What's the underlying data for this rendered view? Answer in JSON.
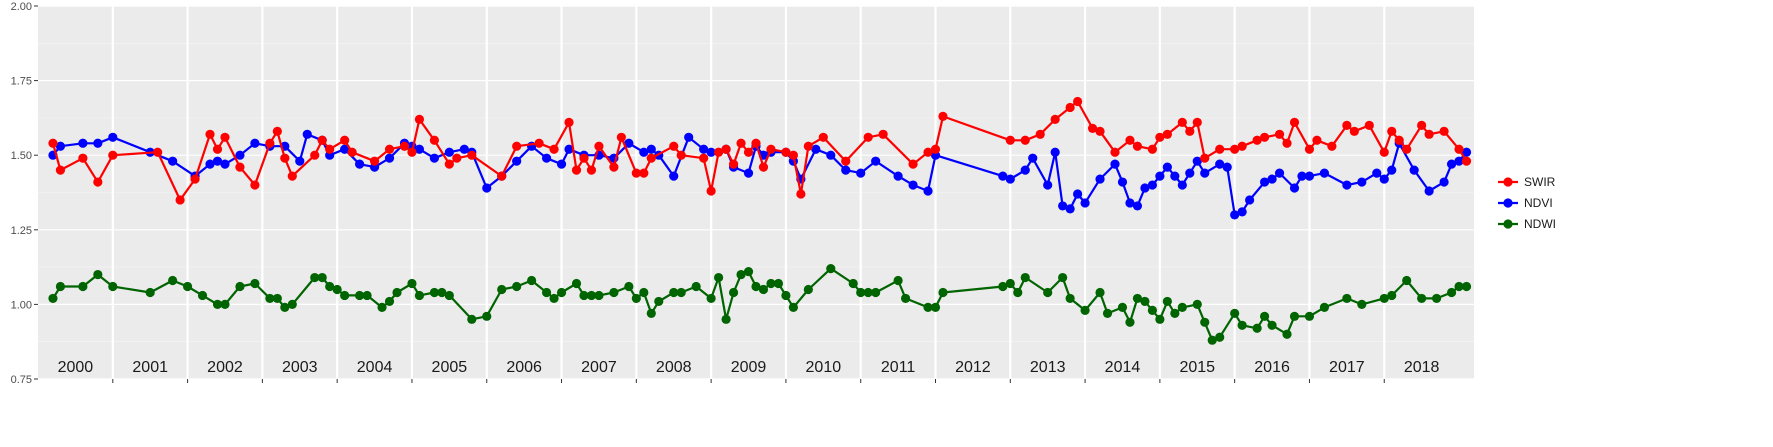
{
  "chart_data": {
    "type": "line",
    "title": "",
    "xlabel": "",
    "ylabel": "",
    "ylim": [
      0.75,
      2.0
    ],
    "xlim": [
      2000.0,
      2019.2
    ],
    "y_ticks": [
      "0.75",
      "1.00",
      "1.25",
      "1.50",
      "1.75",
      "2.00"
    ],
    "y_tick_values": [
      0.75,
      1.0,
      1.25,
      1.5,
      1.75,
      2.0
    ],
    "year_labels": [
      "2000",
      "2001",
      "2002",
      "2003",
      "2004",
      "2005",
      "2006",
      "2007",
      "2008",
      "2009",
      "2010",
      "2011",
      "2012",
      "2013",
      "2014",
      "2015",
      "2016",
      "2017",
      "2018"
    ],
    "grid": true,
    "legend_position": "right",
    "series": [
      {
        "name": "SWIR",
        "color": "#ff0000",
        "x": [
          2000.2,
          2000.3,
          2000.6,
          2000.8,
          2001.0,
          2001.6,
          2001.9,
          2002.1,
          2002.3,
          2002.4,
          2002.5,
          2002.7,
          2002.9,
          2003.1,
          2003.2,
          2003.3,
          2003.4,
          2003.7,
          2003.8,
          2003.9,
          2004.1,
          2004.2,
          2004.5,
          2004.7,
          2004.9,
          2005.0,
          2005.1,
          2005.3,
          2005.5,
          2005.6,
          2005.8,
          2006.2,
          2006.4,
          2006.7,
          2006.9,
          2007.1,
          2007.2,
          2007.3,
          2007.4,
          2007.5,
          2007.7,
          2007.8,
          2008.0,
          2008.1,
          2008.2,
          2008.5,
          2008.6,
          2008.9,
          2009.0,
          2009.1,
          2009.2,
          2009.3,
          2009.4,
          2009.5,
          2009.6,
          2009.7,
          2009.8,
          2010.0,
          2010.1,
          2010.2,
          2010.3,
          2010.5,
          2010.8,
          2011.1,
          2011.3,
          2011.7,
          2011.9,
          2012.0,
          2012.1,
          2013.0,
          2013.2,
          2013.4,
          2013.6,
          2013.8,
          2013.9,
          2014.1,
          2014.2,
          2014.4,
          2014.6,
          2014.7,
          2014.9,
          2015.0,
          2015.1,
          2015.3,
          2015.4,
          2015.5,
          2015.6,
          2015.8,
          2016.0,
          2016.1,
          2016.3,
          2016.4,
          2016.6,
          2016.7,
          2016.8,
          2017.0,
          2017.1,
          2017.3,
          2017.5,
          2017.6,
          2017.8,
          2018.0,
          2018.1,
          2018.2,
          2018.3,
          2018.5,
          2018.6,
          2018.8,
          2019.0,
          2019.1
        ],
        "y": [
          1.54,
          1.45,
          1.49,
          1.41,
          1.5,
          1.51,
          1.35,
          1.42,
          1.57,
          1.52,
          1.56,
          1.46,
          1.4,
          1.54,
          1.58,
          1.49,
          1.43,
          1.5,
          1.55,
          1.52,
          1.55,
          1.51,
          1.48,
          1.52,
          1.53,
          1.51,
          1.62,
          1.55,
          1.47,
          1.49,
          1.5,
          1.43,
          1.53,
          1.54,
          1.52,
          1.61,
          1.45,
          1.49,
          1.45,
          1.53,
          1.46,
          1.56,
          1.44,
          1.44,
          1.49,
          1.53,
          1.5,
          1.49,
          1.38,
          1.51,
          1.52,
          1.47,
          1.54,
          1.51,
          1.54,
          1.46,
          1.52,
          1.51,
          1.5,
          1.37,
          1.53,
          1.56,
          1.48,
          1.56,
          1.57,
          1.47,
          1.51,
          1.52,
          1.63,
          1.55,
          1.55,
          1.57,
          1.62,
          1.66,
          1.68,
          1.59,
          1.58,
          1.51,
          1.55,
          1.53,
          1.52,
          1.56,
          1.57,
          1.61,
          1.58,
          1.61,
          1.49,
          1.52,
          1.52,
          1.53,
          1.55,
          1.56,
          1.57,
          1.54,
          1.61,
          1.52,
          1.55,
          1.53,
          1.6,
          1.58,
          1.6,
          1.51,
          1.58,
          1.55,
          1.52,
          1.6,
          1.57,
          1.58,
          1.52,
          1.48
        ],
        "marker": "circle"
      },
      {
        "name": "NDVI",
        "color": "#0000ff",
        "x": [
          2000.2,
          2000.3,
          2000.6,
          2000.8,
          2001.0,
          2001.5,
          2001.8,
          2002.1,
          2002.3,
          2002.4,
          2002.5,
          2002.7,
          2002.9,
          2003.1,
          2003.3,
          2003.5,
          2003.6,
          2003.8,
          2003.9,
          2004.1,
          2004.3,
          2004.5,
          2004.7,
          2004.9,
          2005.0,
          2005.1,
          2005.3,
          2005.5,
          2005.7,
          2005.8,
          2006.0,
          2006.2,
          2006.4,
          2006.6,
          2006.8,
          2007.0,
          2007.1,
          2007.3,
          2007.5,
          2007.7,
          2007.9,
          2008.1,
          2008.2,
          2008.3,
          2008.5,
          2008.7,
          2008.9,
          2009.0,
          2009.2,
          2009.3,
          2009.5,
          2009.6,
          2009.7,
          2009.8,
          2010.0,
          2010.1,
          2010.2,
          2010.4,
          2010.6,
          2010.8,
          2011.0,
          2011.2,
          2011.5,
          2011.7,
          2011.9,
          2012.0,
          2012.9,
          2013.0,
          2013.2,
          2013.3,
          2013.5,
          2013.6,
          2013.7,
          2013.8,
          2013.9,
          2014.0,
          2014.2,
          2014.4,
          2014.5,
          2014.6,
          2014.7,
          2014.8,
          2014.9,
          2015.0,
          2015.1,
          2015.2,
          2015.3,
          2015.4,
          2015.5,
          2015.6,
          2015.8,
          2015.9,
          2016.0,
          2016.1,
          2016.2,
          2016.4,
          2016.5,
          2016.6,
          2016.8,
          2016.9,
          2017.0,
          2017.2,
          2017.5,
          2017.7,
          2017.9,
          2018.0,
          2018.1,
          2018.2,
          2018.4,
          2018.6,
          2018.8,
          2018.9,
          2019.0,
          2019.1
        ],
        "y": [
          1.5,
          1.53,
          1.54,
          1.54,
          1.56,
          1.51,
          1.48,
          1.43,
          1.47,
          1.48,
          1.47,
          1.5,
          1.54,
          1.53,
          1.53,
          1.48,
          1.57,
          1.55,
          1.5,
          1.52,
          1.47,
          1.46,
          1.49,
          1.54,
          1.53,
          1.52,
          1.49,
          1.51,
          1.52,
          1.51,
          1.39,
          1.43,
          1.48,
          1.53,
          1.49,
          1.47,
          1.52,
          1.5,
          1.5,
          1.49,
          1.54,
          1.51,
          1.52,
          1.5,
          1.43,
          1.56,
          1.52,
          1.51,
          1.52,
          1.46,
          1.44,
          1.53,
          1.5,
          1.51,
          1.51,
          1.48,
          1.42,
          1.52,
          1.5,
          1.45,
          1.44,
          1.48,
          1.43,
          1.4,
          1.38,
          1.5,
          1.43,
          1.42,
          1.45,
          1.49,
          1.4,
          1.51,
          1.33,
          1.32,
          1.37,
          1.34,
          1.42,
          1.47,
          1.41,
          1.34,
          1.33,
          1.39,
          1.4,
          1.43,
          1.46,
          1.43,
          1.4,
          1.44,
          1.48,
          1.44,
          1.47,
          1.46,
          1.3,
          1.31,
          1.35,
          1.41,
          1.42,
          1.44,
          1.39,
          1.43,
          1.43,
          1.44,
          1.4,
          1.41,
          1.44,
          1.42,
          1.45,
          1.54,
          1.45,
          1.38,
          1.41,
          1.47,
          1.48,
          1.51
        ],
        "marker": "circle"
      },
      {
        "name": "NDWI",
        "color": "#006400",
        "x": [
          2000.2,
          2000.3,
          2000.6,
          2000.8,
          2001.0,
          2001.5,
          2001.8,
          2002.0,
          2002.2,
          2002.4,
          2002.5,
          2002.7,
          2002.9,
          2003.1,
          2003.2,
          2003.3,
          2003.4,
          2003.7,
          2003.8,
          2003.9,
          2004.0,
          2004.1,
          2004.3,
          2004.4,
          2004.6,
          2004.7,
          2004.8,
          2005.0,
          2005.1,
          2005.3,
          2005.4,
          2005.5,
          2005.8,
          2006.0,
          2006.2,
          2006.4,
          2006.6,
          2006.8,
          2006.9,
          2007.0,
          2007.2,
          2007.3,
          2007.4,
          2007.5,
          2007.7,
          2007.9,
          2008.0,
          2008.1,
          2008.2,
          2008.3,
          2008.5,
          2008.6,
          2008.8,
          2009.0,
          2009.1,
          2009.2,
          2009.3,
          2009.4,
          2009.5,
          2009.6,
          2009.7,
          2009.8,
          2009.9,
          2010.0,
          2010.1,
          2010.3,
          2010.6,
          2010.9,
          2011.0,
          2011.1,
          2011.2,
          2011.5,
          2011.6,
          2011.9,
          2012.0,
          2012.1,
          2012.9,
          2013.0,
          2013.1,
          2013.2,
          2013.5,
          2013.7,
          2013.8,
          2014.0,
          2014.2,
          2014.3,
          2014.5,
          2014.6,
          2014.7,
          2014.8,
          2014.9,
          2015.0,
          2015.1,
          2015.2,
          2015.3,
          2015.5,
          2015.6,
          2015.7,
          2015.8,
          2016.0,
          2016.1,
          2016.3,
          2016.4,
          2016.5,
          2016.7,
          2016.8,
          2017.0,
          2017.2,
          2017.5,
          2017.7,
          2018.0,
          2018.1,
          2018.3,
          2018.5,
          2018.7,
          2018.9,
          2019.0,
          2019.1
        ],
        "y": [
          1.02,
          1.06,
          1.06,
          1.1,
          1.06,
          1.04,
          1.08,
          1.06,
          1.03,
          1.0,
          1.0,
          1.06,
          1.07,
          1.02,
          1.02,
          0.99,
          1.0,
          1.09,
          1.09,
          1.06,
          1.05,
          1.03,
          1.03,
          1.03,
          0.99,
          1.01,
          1.04,
          1.07,
          1.03,
          1.04,
          1.04,
          1.03,
          0.95,
          0.96,
          1.05,
          1.06,
          1.08,
          1.04,
          1.02,
          1.04,
          1.07,
          1.03,
          1.03,
          1.03,
          1.04,
          1.06,
          1.02,
          1.04,
          0.97,
          1.01,
          1.04,
          1.04,
          1.06,
          1.02,
          1.09,
          0.95,
          1.04,
          1.1,
          1.11,
          1.06,
          1.05,
          1.07,
          1.07,
          1.03,
          0.99,
          1.05,
          1.12,
          1.07,
          1.04,
          1.04,
          1.04,
          1.08,
          1.02,
          0.99,
          0.99,
          1.04,
          1.06,
          1.07,
          1.04,
          1.09,
          1.04,
          1.09,
          1.02,
          0.98,
          1.04,
          0.97,
          0.99,
          0.94,
          1.02,
          1.01,
          0.98,
          0.95,
          1.01,
          0.97,
          0.99,
          1.0,
          0.94,
          0.88,
          0.89,
          0.97,
          0.93,
          0.92,
          0.96,
          0.93,
          0.9,
          0.96,
          0.96,
          0.99,
          1.02,
          1.0,
          1.02,
          1.03,
          1.08,
          1.02,
          1.02,
          1.04,
          1.06,
          1.06
        ],
        "marker": "circle"
      }
    ]
  }
}
